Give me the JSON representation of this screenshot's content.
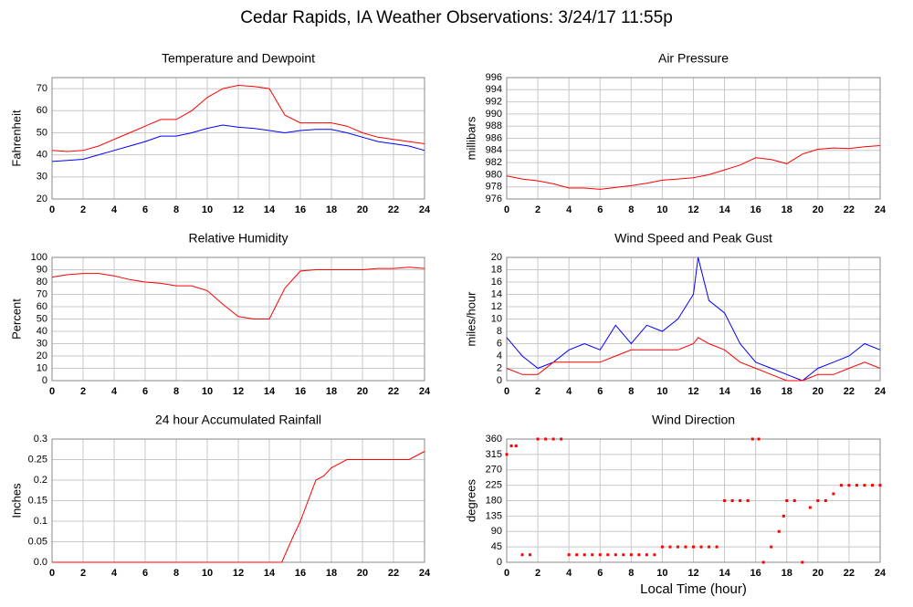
{
  "title": "Cedar Rapids, IA Weather Observations: 3/24/17 11:55p",
  "chart_data": [
    {
      "type": "line",
      "title": "Temperature and Dewpoint",
      "ylabel": "Fahrenheit",
      "x": [
        0,
        1,
        2,
        3,
        4,
        5,
        6,
        7,
        8,
        9,
        10,
        11,
        12,
        13,
        14,
        15,
        16,
        17,
        18,
        19,
        20,
        21,
        22,
        23,
        24
      ],
      "series": [
        {
          "name": "Temperature",
          "color": "#ff0000",
          "values": [
            42,
            41.5,
            42,
            44,
            47,
            50,
            53,
            56,
            56,
            60,
            66,
            70,
            71.5,
            71,
            70,
            58,
            54.5,
            54.5,
            54.5,
            53,
            50,
            48,
            47,
            46,
            45
          ]
        },
        {
          "name": "Dewpoint",
          "color": "#0000ff",
          "values": [
            37,
            37.5,
            38,
            40,
            42,
            44,
            46,
            48.5,
            48.5,
            50,
            52,
            53.5,
            52.5,
            52,
            51,
            50,
            51,
            51.5,
            51.5,
            50,
            48,
            46,
            45,
            44,
            42
          ]
        }
      ],
      "xlim": [
        0,
        24
      ],
      "xticks": [
        0,
        2,
        4,
        6,
        8,
        10,
        12,
        14,
        16,
        18,
        20,
        22,
        24
      ],
      "ylim": [
        20,
        75
      ],
      "yticks": [
        20,
        30,
        40,
        50,
        60,
        70
      ],
      "grid": true
    },
    {
      "type": "line",
      "title": "Air Pressure",
      "ylabel": "millibars",
      "x": [
        0,
        1,
        2,
        3,
        4,
        5,
        6,
        7,
        8,
        9,
        10,
        11,
        12,
        13,
        14,
        15,
        16,
        17,
        18,
        19,
        20,
        21,
        22,
        23,
        24
      ],
      "series": [
        {
          "name": "Pressure",
          "color": "#ff0000",
          "values": [
            979.8,
            979.3,
            979,
            978.5,
            977.8,
            977.8,
            977.6,
            977.9,
            978.2,
            978.6,
            979.1,
            979.3,
            979.5,
            980,
            980.8,
            981.6,
            982.8,
            982.5,
            981.8,
            983.4,
            984.2,
            984.4,
            984.3,
            984.6,
            984.8
          ]
        }
      ],
      "xlim": [
        0,
        24
      ],
      "xticks": [
        0,
        2,
        4,
        6,
        8,
        10,
        12,
        14,
        16,
        18,
        20,
        22,
        24
      ],
      "ylim": [
        976,
        996
      ],
      "yticks": [
        976,
        978,
        980,
        982,
        984,
        986,
        988,
        990,
        992,
        994,
        996
      ],
      "grid": true
    },
    {
      "type": "line",
      "title": "Relative Humidity",
      "ylabel": "Percent",
      "x": [
        0,
        1,
        2,
        3,
        4,
        5,
        6,
        7,
        8,
        9,
        10,
        11,
        12,
        13,
        14,
        15,
        16,
        17,
        18,
        19,
        20,
        21,
        22,
        23,
        24
      ],
      "series": [
        {
          "name": "Relative Humidity",
          "color": "#ff0000",
          "values": [
            84,
            86,
            87,
            87,
            85,
            82,
            80,
            79,
            77,
            77,
            73,
            62,
            52,
            50,
            50,
            75,
            89,
            90,
            90,
            90,
            90,
            91,
            91,
            92,
            91
          ]
        }
      ],
      "xlim": [
        0,
        24
      ],
      "xticks": [
        0,
        2,
        4,
        6,
        8,
        10,
        12,
        14,
        16,
        18,
        20,
        22,
        24
      ],
      "ylim": [
        0,
        100
      ],
      "yticks": [
        0,
        10,
        20,
        30,
        40,
        50,
        60,
        70,
        80,
        90,
        100
      ],
      "grid": true
    },
    {
      "type": "line",
      "title": "Wind Speed and Peak Gust",
      "ylabel": "miles/hour",
      "x": [
        0,
        1,
        2,
        3,
        4,
        5,
        6,
        7,
        8,
        9,
        10,
        11,
        12,
        12.3,
        13,
        14,
        15,
        16,
        17,
        18,
        19,
        20,
        21,
        22,
        23,
        24
      ],
      "series": [
        {
          "name": "Peak Gust",
          "color": "#0000ff",
          "values": [
            7,
            4,
            2,
            3,
            5,
            6,
            5,
            9,
            6,
            9,
            8,
            10,
            14,
            20,
            13,
            11,
            6,
            3,
            2,
            1,
            0,
            2,
            3,
            4,
            6,
            5
          ]
        },
        {
          "name": "Wind Speed",
          "color": "#ff0000",
          "values": [
            2,
            1,
            1,
            3,
            3,
            3,
            3,
            4,
            5,
            5,
            5,
            5,
            6,
            7,
            6,
            5,
            3,
            2,
            1,
            0,
            0,
            1,
            1,
            2,
            3,
            2
          ]
        }
      ],
      "xlim": [
        0,
        24
      ],
      "xticks": [
        0,
        2,
        4,
        6,
        8,
        10,
        12,
        14,
        16,
        18,
        20,
        22,
        24
      ],
      "ylim": [
        0,
        20
      ],
      "yticks": [
        0,
        2,
        4,
        6,
        8,
        10,
        12,
        14,
        16,
        18,
        20
      ],
      "grid": true
    },
    {
      "type": "line",
      "title": "24 hour Accumulated Rainfall",
      "ylabel": "Inches",
      "x": [
        0,
        2,
        4,
        6,
        8,
        10,
        12,
        14,
        14.8,
        15.5,
        16,
        16.5,
        17,
        17.5,
        18,
        19,
        20,
        21,
        22,
        23,
        23.5,
        24
      ],
      "series": [
        {
          "name": "Rainfall",
          "color": "#ff0000",
          "values": [
            0,
            0,
            0,
            0,
            0,
            0,
            0,
            0,
            0,
            0.06,
            0.1,
            0.15,
            0.2,
            0.21,
            0.23,
            0.25,
            0.25,
            0.25,
            0.25,
            0.25,
            0.26,
            0.27
          ]
        }
      ],
      "xlim": [
        0,
        24
      ],
      "xticks": [
        0,
        2,
        4,
        6,
        8,
        10,
        12,
        14,
        16,
        18,
        20,
        22,
        24
      ],
      "ylim": [
        0,
        0.3
      ],
      "yticks": [
        {
          "value": 0,
          "label": "0.0"
        },
        0.05,
        0.1,
        0.15,
        0.2,
        0.25,
        0.3
      ],
      "grid": true
    },
    {
      "type": "scatter",
      "title": "Wind Direction",
      "ylabel": "degrees",
      "xlabel": "Local Time (hour)",
      "x": [
        0,
        0.3,
        0.6,
        1,
        1.5,
        2,
        2.5,
        3,
        3.5,
        4,
        4.5,
        5,
        5.5,
        6,
        6.5,
        7,
        7.5,
        8,
        8.5,
        9,
        9.5,
        10,
        10.5,
        11,
        11.5,
        12,
        12.5,
        13,
        13.5,
        14,
        14.5,
        15,
        15.5,
        15.8,
        16.2,
        16.5,
        17,
        17.5,
        17.8,
        18,
        18.5,
        19,
        19.5,
        20,
        20.5,
        21,
        21.5,
        22,
        22.5,
        23,
        23.5,
        24
      ],
      "series": [
        {
          "name": "Wind Direction",
          "color": "#ff0000",
          "values": [
            315,
            340,
            340,
            22,
            22,
            360,
            360,
            360,
            360,
            22,
            22,
            22,
            22,
            22,
            22,
            22,
            22,
            22,
            22,
            22,
            22,
            45,
            45,
            45,
            45,
            45,
            45,
            45,
            45,
            180,
            180,
            180,
            180,
            360,
            360,
            0,
            45,
            90,
            135,
            180,
            180,
            0,
            160,
            180,
            180,
            200,
            225,
            225,
            225,
            225,
            225,
            225
          ]
        }
      ],
      "xlim": [
        0,
        24
      ],
      "xticks": [
        0,
        2,
        4,
        6,
        8,
        10,
        12,
        14,
        16,
        18,
        20,
        22,
        24
      ],
      "ylim": [
        0,
        360
      ],
      "yticks": [
        0,
        45,
        90,
        135,
        180,
        225,
        270,
        315,
        360
      ],
      "grid": true
    }
  ]
}
